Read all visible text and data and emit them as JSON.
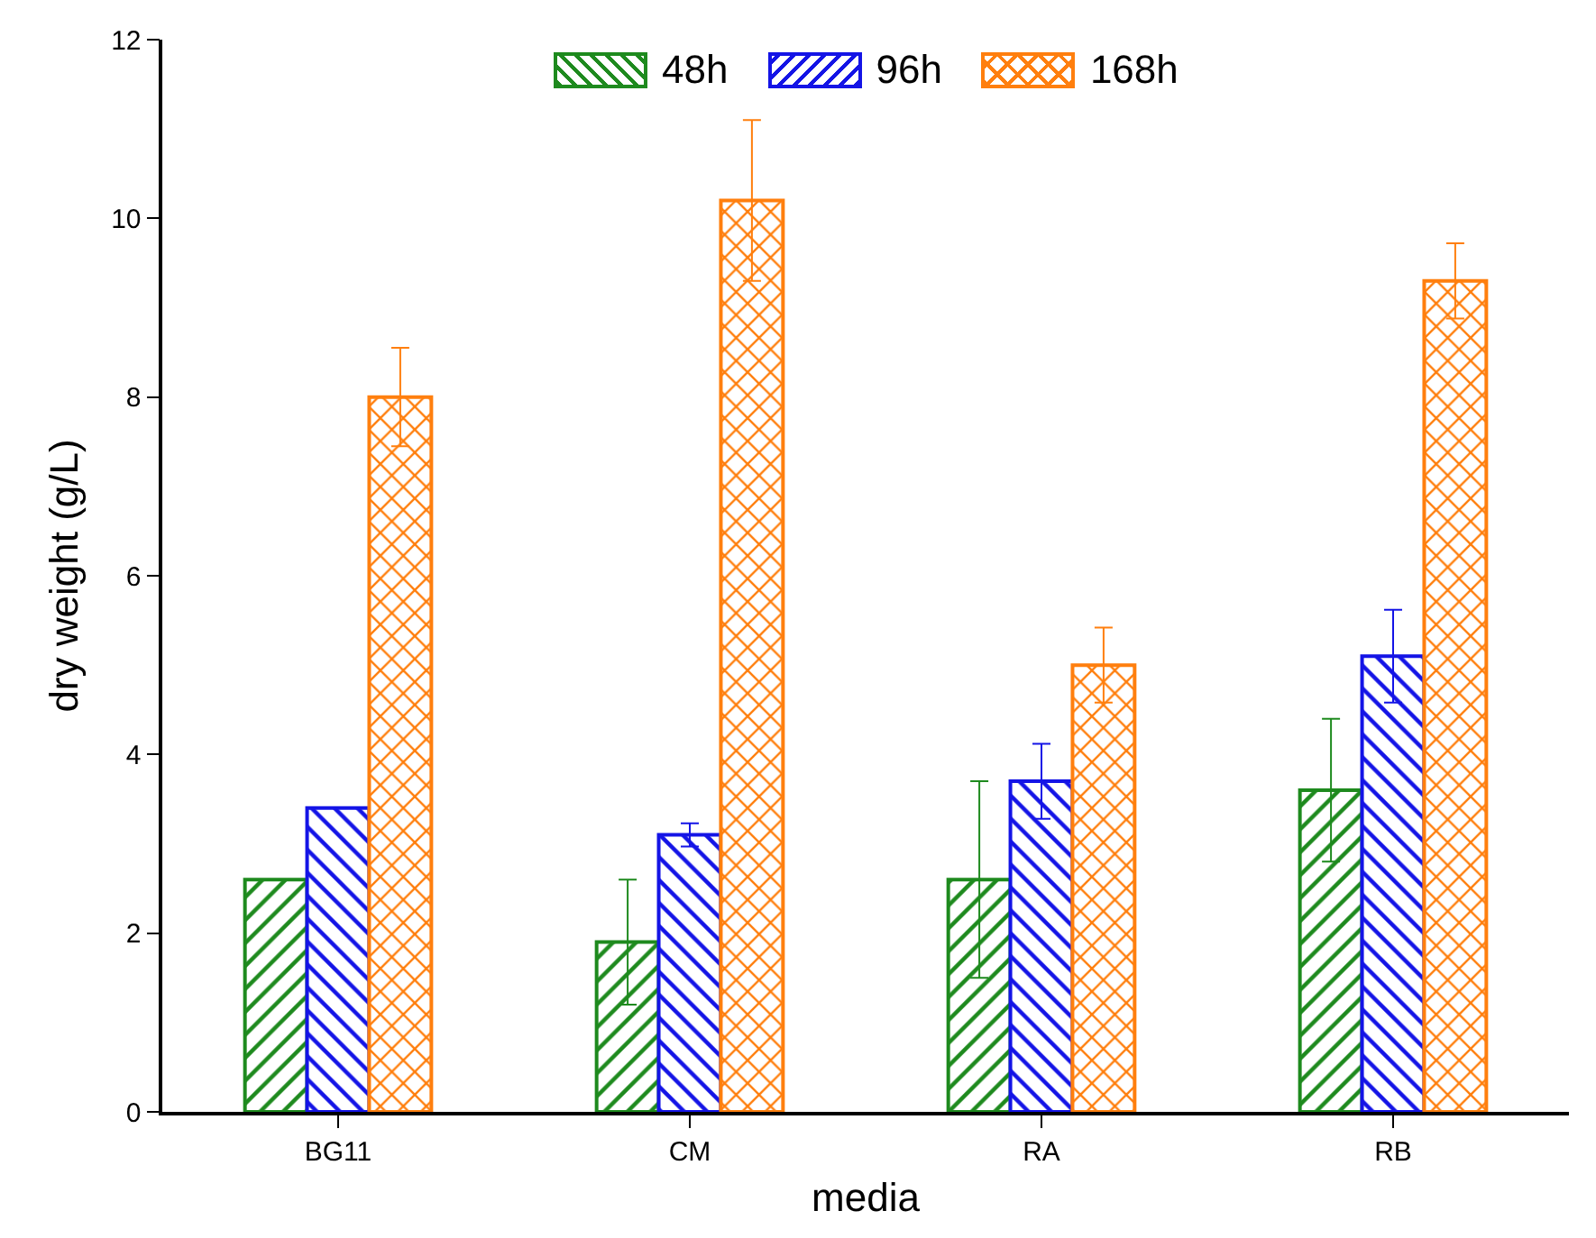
{
  "chart_data": {
    "type": "bar",
    "xlabel": "media",
    "ylabel": "dry weight (g/L)",
    "categories": [
      "BG11",
      "CM",
      "RA",
      "RB"
    ],
    "series": [
      {
        "name": "48h",
        "color": "#1e8a1e",
        "values": [
          2.6,
          1.9,
          2.6,
          3.6
        ],
        "errors": [
          null,
          0.7,
          1.1,
          0.8
        ]
      },
      {
        "name": "96h",
        "color": "#1414e6",
        "values": [
          3.4,
          3.1,
          3.7,
          5.1
        ],
        "errors": [
          null,
          0.13,
          0.42,
          0.52
        ]
      },
      {
        "name": "168h",
        "color": "#ff7f0e",
        "values": [
          8.0,
          10.2,
          5.0,
          9.3
        ],
        "errors": [
          0.55,
          0.9,
          0.42,
          0.42
        ]
      }
    ],
    "ylim": [
      0,
      12
    ],
    "yticks": [
      0,
      2,
      4,
      6,
      8,
      10,
      12
    ],
    "grid": false,
    "legend": "top"
  }
}
